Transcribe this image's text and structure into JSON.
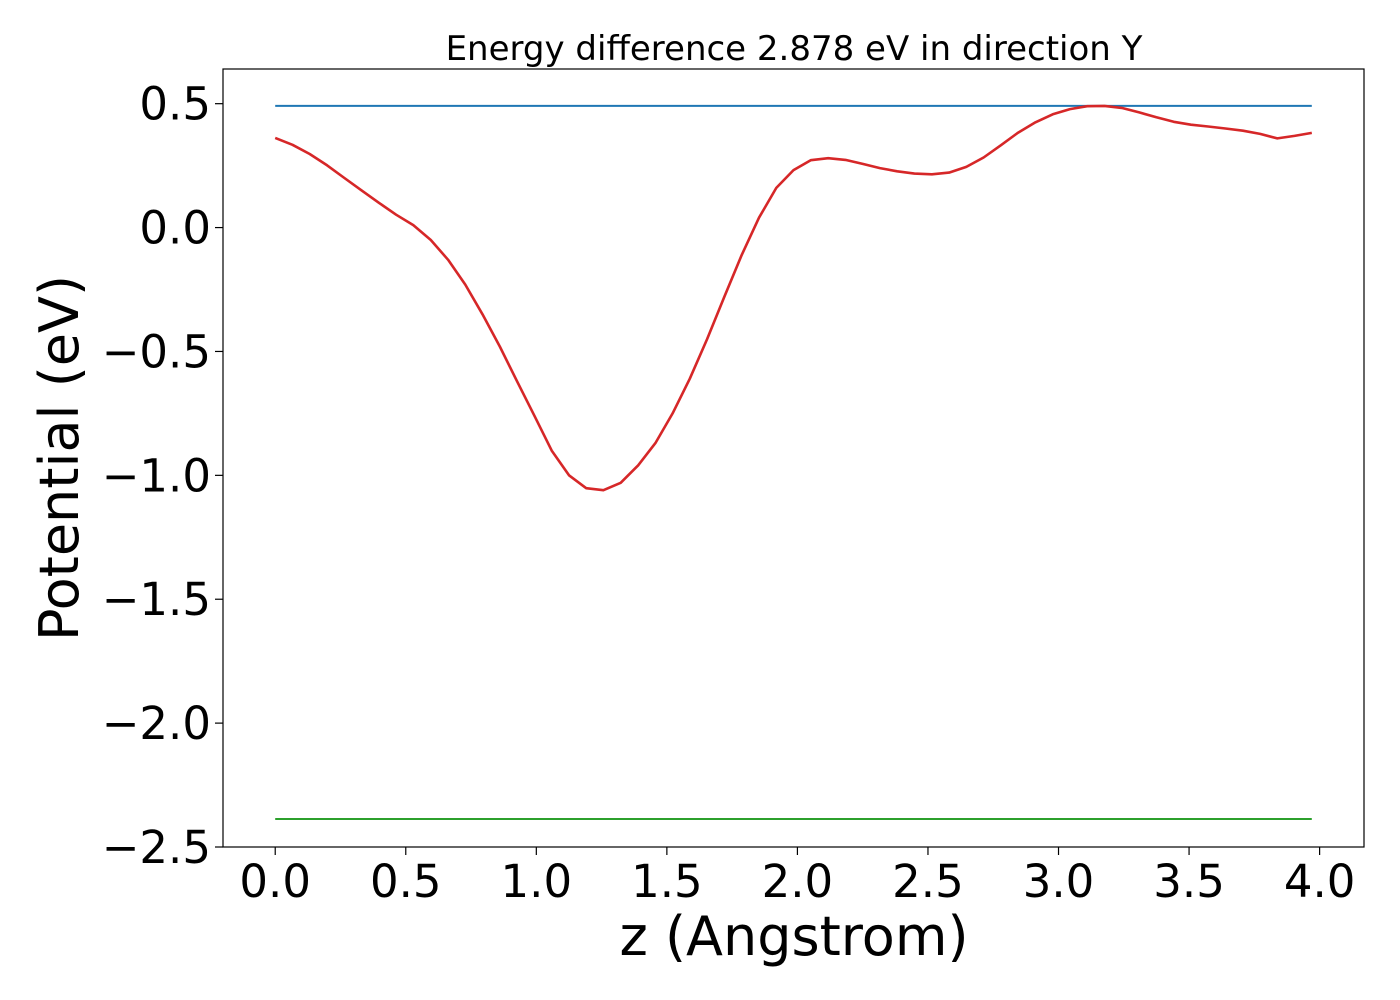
{
  "chart_data": {
    "type": "line",
    "title": "Energy difference 2.878 eV in direction Y",
    "xlabel": "z (Angstrom)",
    "ylabel": "Potential (eV)",
    "xlim": [
      -0.2,
      4.17
    ],
    "ylim": [
      -2.5,
      0.64
    ],
    "x_ticks": [
      0.0,
      0.5,
      1.0,
      1.5,
      2.0,
      2.5,
      3.0,
      3.5,
      4.0
    ],
    "x_tick_labels": [
      "0.0",
      "0.5",
      "1.0",
      "1.5",
      "2.0",
      "2.5",
      "3.0",
      "3.5",
      "4.0"
    ],
    "y_ticks": [
      0.5,
      0.0,
      -0.5,
      -1.0,
      -1.5,
      -2.0,
      -2.5
    ],
    "y_tick_labels": [
      "0.5",
      "0.0",
      "−0.5",
      "−1.0",
      "−1.5",
      "−2.0",
      "−2.5"
    ],
    "grid": false,
    "series": [
      {
        "color": "#1f77b4",
        "x": [
          0.0,
          3.97
        ],
        "y": [
          0.491,
          0.491
        ]
      },
      {
        "color": "#2ca02c",
        "x": [
          0.0,
          3.97
        ],
        "y": [
          -2.387,
          -2.387
        ]
      },
      {
        "color": "#d62728",
        "x": [
          0.0,
          0.066,
          0.132,
          0.199,
          0.265,
          0.331,
          0.397,
          0.463,
          0.529,
          0.596,
          0.662,
          0.728,
          0.794,
          0.86,
          0.926,
          0.993,
          1.059,
          1.125,
          1.191,
          1.257,
          1.323,
          1.39,
          1.456,
          1.522,
          1.588,
          1.654,
          1.72,
          1.787,
          1.853,
          1.919,
          1.985,
          2.051,
          2.118,
          2.184,
          2.25,
          2.316,
          2.382,
          2.448,
          2.515,
          2.581,
          2.647,
          2.713,
          2.779,
          2.845,
          2.912,
          2.978,
          3.044,
          3.11,
          3.176,
          3.242,
          3.309,
          3.375,
          3.441,
          3.507,
          3.573,
          3.639,
          3.706,
          3.772,
          3.838,
          3.904,
          3.97
        ],
        "y": [
          0.362,
          0.334,
          0.297,
          0.251,
          0.2,
          0.15,
          0.1,
          0.052,
          0.01,
          -0.05,
          -0.13,
          -0.23,
          -0.35,
          -0.48,
          -0.62,
          -0.76,
          -0.9,
          -1.0,
          -1.052,
          -1.06,
          -1.03,
          -0.96,
          -0.87,
          -0.75,
          -0.61,
          -0.45,
          -0.28,
          -0.11,
          0.04,
          0.16,
          0.232,
          0.272,
          0.28,
          0.273,
          0.257,
          0.24,
          0.227,
          0.218,
          0.215,
          0.222,
          0.245,
          0.283,
          0.332,
          0.383,
          0.425,
          0.457,
          0.478,
          0.49,
          0.491,
          0.483,
          0.465,
          0.445,
          0.427,
          0.415,
          0.408,
          0.4,
          0.391,
          0.378,
          0.36,
          0.37,
          0.382
        ]
      }
    ]
  }
}
